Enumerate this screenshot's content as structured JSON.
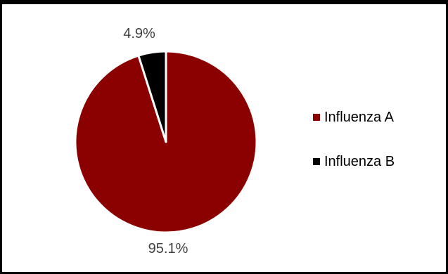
{
  "chart_data": {
    "type": "pie",
    "title": "",
    "categories": [
      "Influenza A",
      "Influenza B"
    ],
    "values": [
      95.1,
      4.9
    ],
    "data_labels": [
      "95.1%",
      "4.9%"
    ],
    "colors": [
      "#8B0000",
      "#000000"
    ],
    "slice_border_color": "#ffffff",
    "start": "12 o'clock",
    "direction": "clockwise",
    "legend_position": "right"
  }
}
